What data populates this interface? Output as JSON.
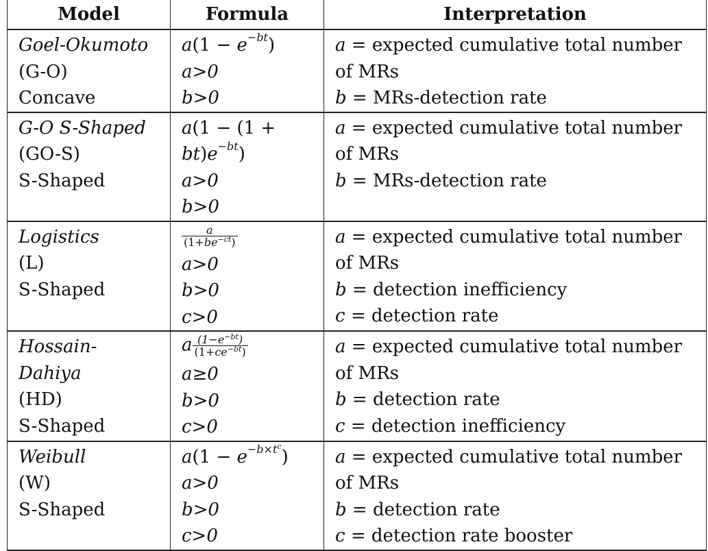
{
  "headers": {
    "model": "Model",
    "formula": "Formula",
    "interpretation": "Interpretation"
  },
  "rows": [
    {
      "model_lines": [
        "Goel-Okumoto",
        "(G-O)",
        "Concave"
      ],
      "formula_lines": [
        "a(1 − e^{−bt})",
        "a>0",
        "b>0"
      ],
      "interp_lines": [
        "a = expected cumulative total number",
        "of MRs",
        "b = MRs-detection rate"
      ]
    },
    {
      "model_lines": [
        "G-O S-Shaped",
        "(GO-S)",
        "S-Shaped",
        ""
      ],
      "formula_lines": [
        "a(1 − (1 +",
        "bt)e^{−bt})",
        "a>0",
        "b>0"
      ],
      "interp_lines": [
        "a = expected cumulative total number",
        "of MRs",
        "b = MRs-detection rate",
        ""
      ]
    },
    {
      "model_lines": [
        "Logistics",
        "(L)",
        "S-Shaped",
        ""
      ],
      "formula_lines": [
        "a / (1+be^{−ct})",
        "a>0",
        "b>0",
        "c>0"
      ],
      "interp_lines": [
        "a = expected cumulative total number",
        "of MRs",
        "b = detection inefficiency",
        "c = detection rate"
      ]
    },
    {
      "model_lines": [
        "Hossain-",
        "Dahiya",
        "(HD)",
        "S-Shaped"
      ],
      "formula_lines": [
        "a (1−e^{−bt})/(1+ce^{−bt})",
        "a≥0",
        "b>0",
        "c>0"
      ],
      "interp_lines": [
        "a = expected cumulative total number",
        "of MRs",
        "b = detection rate",
        "c = detection inefficiency"
      ]
    },
    {
      "model_lines": [
        "Weibull",
        "(W)",
        "S-Shaped",
        ""
      ],
      "formula_lines": [
        "a(1 − e^{−b×t^c})",
        "a>0",
        "b>0",
        "c>0"
      ],
      "interp_lines": [
        "a = expected cumulative total number",
        "of MRs",
        "b = detection rate",
        "c = detection rate booster"
      ]
    }
  ]
}
